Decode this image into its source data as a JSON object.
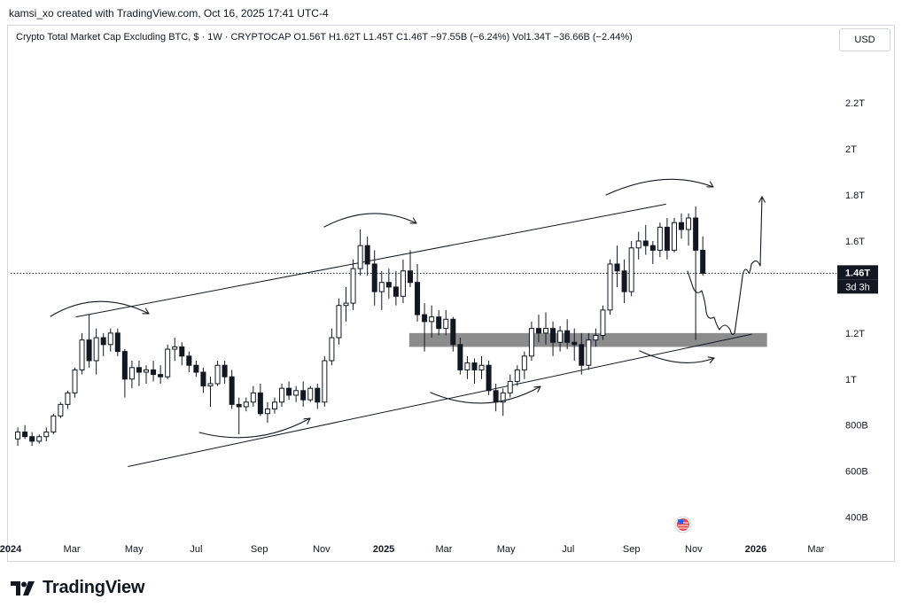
{
  "header": {
    "attribution": "kamsi_xo created with TradingView.com, Oct 16, 2025 17:41 UTC-4",
    "legend": "Crypto Total Market Cap Excluding BTC, $ · 1W · CRYPTOCAP  O1.56T  H1.62T  L1.45T  C1.46T  −97.55B (−6.24%)  Vol1.34T  −36.66B (−2.44%)",
    "currency": "USD"
  },
  "footer": {
    "brand": "TradingView"
  },
  "colors": {
    "up": "#ffffff",
    "down": "#131722",
    "zone": "#8c8c8c",
    "line": "#131722",
    "priceline": "#131722",
    "text": "#131722"
  },
  "chart_data": {
    "type": "candlestick",
    "y_scale": "linear",
    "ylim": [
      0.36,
      2.32
    ],
    "y_unit": "USD",
    "y_ticks": [
      {
        "v": 2.2,
        "label": "2.2T"
      },
      {
        "v": 2.0,
        "label": "2T"
      },
      {
        "v": 1.8,
        "label": "1.8T"
      },
      {
        "v": 1.6,
        "label": "1.6T"
      },
      {
        "v": 1.2,
        "label": "1.2T"
      },
      {
        "v": 1.0,
        "label": "1T"
      },
      {
        "v": 0.8,
        "label": "800B"
      },
      {
        "v": 0.6,
        "label": "600B"
      },
      {
        "v": 0.4,
        "label": "400B"
      }
    ],
    "x_range": [
      "2024-01-01",
      "2026-03-15"
    ],
    "x_ticks": [
      {
        "d": "2024-01-01",
        "label": "2024",
        "bold": true
      },
      {
        "d": "2024-03-01",
        "label": "Mar"
      },
      {
        "d": "2024-05-01",
        "label": "May"
      },
      {
        "d": "2024-07-01",
        "label": "Jul"
      },
      {
        "d": "2024-09-01",
        "label": "Sep"
      },
      {
        "d": "2024-11-01",
        "label": "Nov"
      },
      {
        "d": "2025-01-01",
        "label": "2025",
        "bold": true
      },
      {
        "d": "2025-03-01",
        "label": "Mar"
      },
      {
        "d": "2025-05-01",
        "label": "May"
      },
      {
        "d": "2025-07-01",
        "label": "Jul"
      },
      {
        "d": "2025-09-01",
        "label": "Sep"
      },
      {
        "d": "2025-11-01",
        "label": "Nov"
      },
      {
        "d": "2026-01-01",
        "label": "2026",
        "bold": true
      },
      {
        "d": "2026-03-01",
        "label": "Mar"
      }
    ],
    "candles_first_week": "2024-01-08",
    "candles_interval": "1W",
    "candles": [
      [
        0.74,
        0.79,
        0.71,
        0.77
      ],
      [
        0.77,
        0.8,
        0.74,
        0.75
      ],
      [
        0.75,
        0.77,
        0.71,
        0.73
      ],
      [
        0.73,
        0.76,
        0.72,
        0.75
      ],
      [
        0.75,
        0.79,
        0.73,
        0.77
      ],
      [
        0.77,
        0.85,
        0.76,
        0.84
      ],
      [
        0.84,
        0.9,
        0.83,
        0.89
      ],
      [
        0.89,
        0.95,
        0.87,
        0.94
      ],
      [
        0.94,
        1.05,
        0.92,
        1.04
      ],
      [
        1.04,
        1.2,
        1.02,
        1.17
      ],
      [
        1.17,
        1.28,
        1.05,
        1.08
      ],
      [
        1.08,
        1.22,
        1.02,
        1.18
      ],
      [
        1.18,
        1.2,
        1.1,
        1.15
      ],
      [
        1.15,
        1.22,
        1.12,
        1.2
      ],
      [
        1.2,
        1.22,
        1.1,
        1.12
      ],
      [
        1.12,
        1.13,
        0.92,
        1.0
      ],
      [
        1.0,
        1.08,
        0.96,
        1.05
      ],
      [
        1.05,
        1.08,
        0.97,
        1.03
      ],
      [
        1.03,
        1.06,
        0.98,
        1.04
      ],
      [
        1.04,
        1.08,
        0.99,
        1.02
      ],
      [
        1.02,
        1.06,
        0.98,
        1.01
      ],
      [
        1.01,
        1.15,
        1.0,
        1.13
      ],
      [
        1.13,
        1.18,
        1.08,
        1.14
      ],
      [
        1.14,
        1.16,
        1.06,
        1.1
      ],
      [
        1.1,
        1.12,
        1.03,
        1.06
      ],
      [
        1.06,
        1.08,
        1.01,
        1.03
      ],
      [
        1.03,
        1.05,
        0.94,
        0.97
      ],
      [
        0.97,
        1.01,
        0.88,
        0.98
      ],
      [
        0.98,
        1.08,
        0.97,
        1.06
      ],
      [
        1.06,
        1.08,
        0.98,
        1.01
      ],
      [
        1.01,
        1.04,
        0.87,
        0.89
      ],
      [
        0.89,
        0.92,
        0.76,
        0.88
      ],
      [
        0.88,
        0.92,
        0.86,
        0.9
      ],
      [
        0.9,
        0.97,
        0.88,
        0.94
      ],
      [
        0.94,
        0.98,
        0.84,
        0.85
      ],
      [
        0.85,
        0.9,
        0.81,
        0.87
      ],
      [
        0.87,
        0.92,
        0.85,
        0.9
      ],
      [
        0.9,
        0.98,
        0.88,
        0.96
      ],
      [
        0.96,
        0.99,
        0.91,
        0.93
      ],
      [
        0.93,
        0.97,
        0.9,
        0.95
      ],
      [
        0.95,
        0.99,
        0.88,
        0.91
      ],
      [
        0.91,
        0.97,
        0.9,
        0.96
      ],
      [
        0.96,
        0.98,
        0.87,
        0.9
      ],
      [
        0.9,
        1.1,
        0.88,
        1.08
      ],
      [
        1.08,
        1.22,
        1.06,
        1.18
      ],
      [
        1.18,
        1.35,
        1.15,
        1.32
      ],
      [
        1.32,
        1.4,
        1.25,
        1.33
      ],
      [
        1.33,
        1.52,
        1.3,
        1.48
      ],
      [
        1.48,
        1.65,
        1.45,
        1.58
      ],
      [
        1.58,
        1.62,
        1.45,
        1.5
      ],
      [
        1.5,
        1.56,
        1.32,
        1.38
      ],
      [
        1.38,
        1.47,
        1.3,
        1.42
      ],
      [
        1.42,
        1.48,
        1.35,
        1.4
      ],
      [
        1.4,
        1.47,
        1.32,
        1.36
      ],
      [
        1.36,
        1.52,
        1.33,
        1.47
      ],
      [
        1.47,
        1.56,
        1.4,
        1.42
      ],
      [
        1.42,
        1.5,
        1.25,
        1.28
      ],
      [
        1.28,
        1.33,
        1.12,
        1.25
      ],
      [
        1.25,
        1.32,
        1.18,
        1.27
      ],
      [
        1.27,
        1.3,
        1.19,
        1.22
      ],
      [
        1.22,
        1.3,
        1.19,
        1.26
      ],
      [
        1.26,
        1.27,
        1.12,
        1.15
      ],
      [
        1.15,
        1.18,
        1.02,
        1.04
      ],
      [
        1.04,
        1.1,
        1.0,
        1.07
      ],
      [
        1.07,
        1.09,
        0.98,
        1.04
      ],
      [
        1.04,
        1.1,
        1.0,
        1.06
      ],
      [
        1.06,
        1.08,
        0.93,
        0.95
      ],
      [
        0.95,
        0.98,
        0.86,
        0.9
      ],
      [
        0.9,
        0.96,
        0.84,
        0.94
      ],
      [
        0.94,
        1.02,
        0.92,
        0.99
      ],
      [
        0.99,
        1.06,
        0.97,
        1.04
      ],
      [
        1.04,
        1.12,
        1.0,
        1.1
      ],
      [
        1.1,
        1.25,
        1.08,
        1.22
      ],
      [
        1.22,
        1.28,
        1.16,
        1.2
      ],
      [
        1.2,
        1.29,
        1.15,
        1.22
      ],
      [
        1.22,
        1.25,
        1.1,
        1.16
      ],
      [
        1.16,
        1.23,
        1.12,
        1.21
      ],
      [
        1.21,
        1.26,
        1.13,
        1.16
      ],
      [
        1.16,
        1.22,
        1.08,
        1.15
      ],
      [
        1.15,
        1.2,
        1.02,
        1.06
      ],
      [
        1.06,
        1.2,
        1.04,
        1.17
      ],
      [
        1.17,
        1.22,
        1.14,
        1.19
      ],
      [
        1.19,
        1.32,
        1.17,
        1.3
      ],
      [
        1.3,
        1.52,
        1.28,
        1.5
      ],
      [
        1.5,
        1.58,
        1.4,
        1.47
      ],
      [
        1.47,
        1.52,
        1.33,
        1.38
      ],
      [
        1.38,
        1.6,
        1.36,
        1.57
      ],
      [
        1.57,
        1.64,
        1.52,
        1.6
      ],
      [
        1.6,
        1.67,
        1.54,
        1.58
      ],
      [
        1.58,
        1.6,
        1.5,
        1.56
      ],
      [
        1.56,
        1.68,
        1.53,
        1.66
      ],
      [
        1.66,
        1.7,
        1.52,
        1.56
      ],
      [
        1.56,
        1.7,
        1.55,
        1.68
      ],
      [
        1.68,
        1.72,
        1.61,
        1.65
      ],
      [
        1.65,
        1.72,
        1.58,
        1.7
      ],
      [
        1.7,
        1.75,
        1.17,
        1.56
      ],
      [
        1.56,
        1.62,
        1.45,
        1.46
      ]
    ],
    "overlays": {
      "channel_upper": [
        [
          "2024-03-05",
          1.27
        ],
        [
          "2025-10-05",
          1.76
        ]
      ],
      "channel_lower": [
        [
          "2024-04-25",
          0.62
        ],
        [
          "2025-12-28",
          1.195
        ]
      ],
      "support_zone": {
        "x": [
          "2025-01-26",
          "2026-01-12"
        ],
        "y": [
          1.14,
          1.2
        ]
      },
      "last_price": {
        "value": 1.46,
        "label": "1.46T",
        "countdown": "3d 3h"
      }
    }
  }
}
